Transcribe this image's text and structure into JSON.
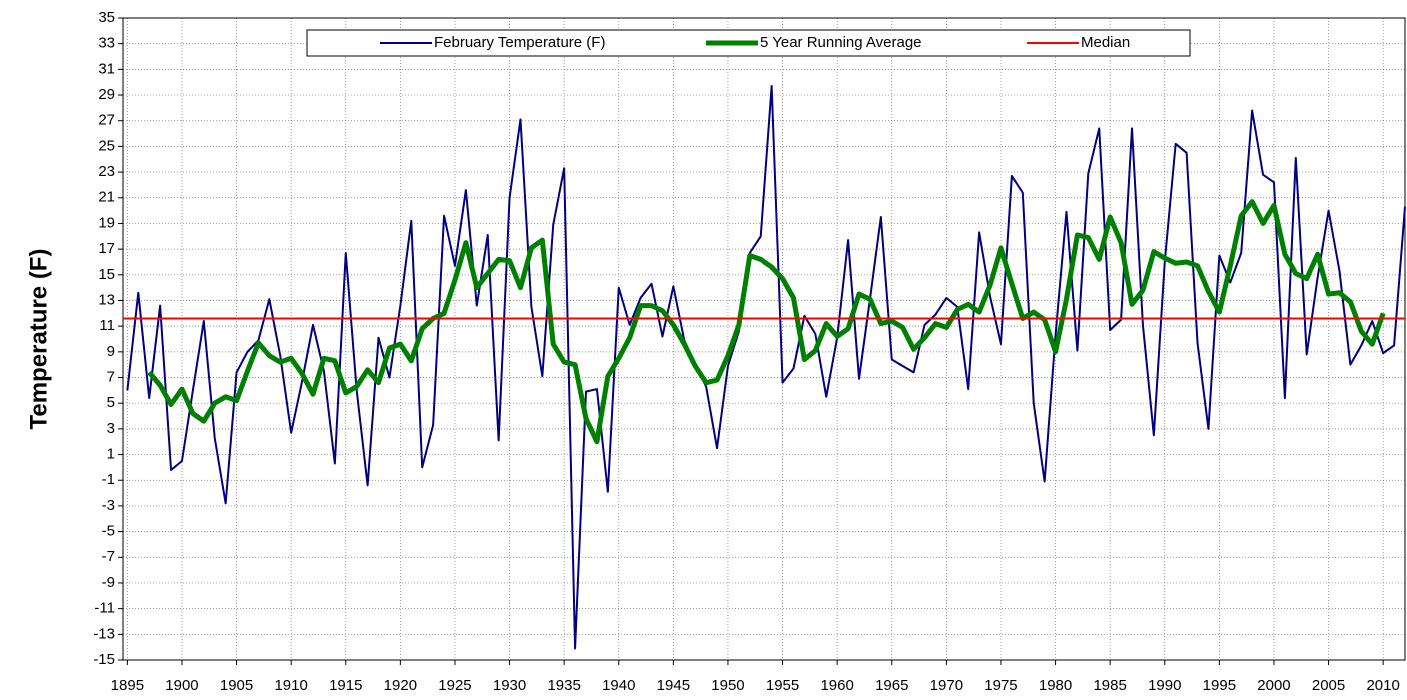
{
  "chart_data": {
    "type": "line",
    "ylabel": "Temperature (F)",
    "x": [
      1895,
      1896,
      1897,
      1898,
      1899,
      1900,
      1901,
      1902,
      1903,
      1904,
      1905,
      1906,
      1907,
      1908,
      1909,
      1910,
      1911,
      1912,
      1913,
      1914,
      1915,
      1916,
      1917,
      1918,
      1919,
      1920,
      1921,
      1922,
      1923,
      1924,
      1925,
      1926,
      1927,
      1928,
      1929,
      1930,
      1931,
      1932,
      1933,
      1934,
      1935,
      1936,
      1937,
      1938,
      1939,
      1940,
      1941,
      1942,
      1943,
      1944,
      1945,
      1946,
      1947,
      1948,
      1949,
      1950,
      1951,
      1952,
      1953,
      1954,
      1955,
      1956,
      1957,
      1958,
      1959,
      1960,
      1961,
      1962,
      1963,
      1964,
      1965,
      1966,
      1967,
      1968,
      1969,
      1970,
      1971,
      1972,
      1973,
      1974,
      1975,
      1976,
      1977,
      1978,
      1979,
      1980,
      1981,
      1982,
      1983,
      1984,
      1985,
      1986,
      1987,
      1988,
      1989,
      1990,
      1991,
      1992,
      1993,
      1994,
      1995,
      1996,
      1997,
      1998,
      1999,
      2000,
      2001,
      2002,
      2003,
      2004,
      2005,
      2006,
      2007,
      2008,
      2009,
      2010,
      2011,
      2012
    ],
    "series": [
      {
        "name": "February Temperature (F)",
        "color": "#000080",
        "width": 2,
        "values": [
          6,
          13.6,
          5.4,
          12.6,
          -0.2,
          0.5,
          6,
          11.4,
          2.3,
          -2.8,
          7.4,
          9,
          9.9,
          13.1,
          8.7,
          2.7,
          6.7,
          11.1,
          7.5,
          0.3,
          16.7,
          6,
          -1.4,
          10.1,
          7,
          12.6,
          19.2,
          0,
          3.3,
          19.6,
          15.7,
          21.6,
          12.6,
          18.1,
          2.1,
          21,
          27.1,
          12.5,
          7.1,
          18.9,
          23.3,
          -14.1,
          5.9,
          6.1,
          -1.9,
          14,
          11.1,
          13.2,
          14.3,
          10.2,
          14.1,
          9.9,
          8,
          6.3,
          1.5,
          7.9,
          10.6,
          16.7,
          18,
          29.7,
          6.6,
          7.7,
          11.8,
          10.4,
          5.5,
          10.1,
          17.7,
          6.9,
          13.1,
          19.5,
          8.4,
          7.9,
          7.4,
          11.1,
          11.9,
          13.2,
          12.5,
          6.1,
          18.3,
          13.3,
          9.6,
          22.7,
          21.4,
          5,
          -1.1,
          10.3,
          19.9,
          9.1,
          22.9,
          26.4,
          10.7,
          11.5,
          26.4,
          11.1,
          2.5,
          16,
          25.2,
          24.5,
          9.7,
          3,
          16.5,
          14.4,
          16.7,
          27.8,
          22.8,
          22.2,
          5.4,
          24.1,
          8.8,
          14.8,
          20,
          15.3,
          8,
          9.5,
          11.4,
          8.9,
          9.5,
          20.3
        ]
      },
      {
        "name": "5 Year Running Average",
        "color": "#008000",
        "width": 5,
        "values": [
          null,
          null,
          7.4,
          6.4,
          4.9,
          6.1,
          4.2,
          3.6,
          5,
          5.5,
          5.2,
          7.5,
          9.7,
          8.7,
          8.2,
          8.5,
          7.3,
          5.7,
          8.5,
          8.3,
          5.8,
          6.3,
          7.6,
          6.6,
          9.3,
          9.6,
          8.3,
          10.8,
          11.6,
          12,
          14.6,
          17.5,
          14,
          15.1,
          16.2,
          16.1,
          14,
          17.1,
          17.7,
          9.6,
          8.2,
          8,
          3.8,
          2,
          7.1,
          8.5,
          10.1,
          12.6,
          12.6,
          12.2,
          11.1,
          9.6,
          7.9,
          6.6,
          6.8,
          8.7,
          11.1,
          16.5,
          16.2,
          15.6,
          14.7,
          13.2,
          8.4,
          9.1,
          11.2,
          10.2,
          10.8,
          13.5,
          13.1,
          11.2,
          11.4,
          10.9,
          9.2,
          10.1,
          11.2,
          10.9,
          12.3,
          12.7,
          12.1,
          14.2,
          17.1,
          14.3,
          11.6,
          12.1,
          11.5,
          9,
          13.1,
          18.1,
          17.9,
          16.2,
          19.5,
          17.5,
          12.7,
          13.8,
          16.8,
          16.3,
          15.9,
          16,
          15.7,
          13.7,
          12.1,
          15.7,
          19.6,
          20.7,
          19,
          20.4,
          16.6,
          15.1,
          14.7,
          16.6,
          13.5,
          13.6,
          12.9,
          10.6,
          9.6,
          12,
          null,
          null
        ]
      },
      {
        "name": "Median",
        "color": "#ff0000",
        "width": 2,
        "value": 11.6
      }
    ],
    "xlim": [
      1894.6,
      2012
    ],
    "xticks": [
      1895,
      1900,
      1905,
      1910,
      1915,
      1920,
      1925,
      1930,
      1935,
      1940,
      1945,
      1950,
      1955,
      1960,
      1965,
      1970,
      1975,
      1980,
      1985,
      1990,
      1995,
      2000,
      2005,
      2010
    ],
    "ylim": [
      -15,
      35
    ],
    "yticks": [
      -15,
      -13,
      -11,
      -9,
      -7,
      -5,
      -3,
      -1,
      1,
      3,
      5,
      7,
      9,
      11,
      13,
      15,
      17,
      19,
      21,
      23,
      25,
      27,
      29,
      31,
      33,
      35
    ],
    "grid": true,
    "legend": "top"
  }
}
